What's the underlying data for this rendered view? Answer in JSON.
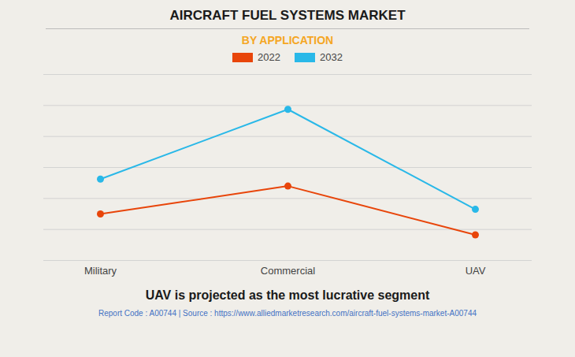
{
  "chart_data": {
    "type": "line",
    "title": "AIRCRAFT FUEL SYSTEMS MARKET",
    "subtitle": "BY APPLICATION",
    "categories": [
      "Military",
      "Commercial",
      "UAV"
    ],
    "series": [
      {
        "name": "2022",
        "color": "#E8450A",
        "values": [
          2,
          3.2,
          1.1
        ]
      },
      {
        "name": "2032",
        "color": "#29B8E8",
        "values": [
          3.5,
          6.5,
          2.2
        ]
      }
    ],
    "ylim": [
      0,
      8
    ],
    "yticks": [
      0,
      1.3333333333333333,
      2.6666666666666665,
      4,
      5.333333333333333,
      6.666666666666666,
      8
    ],
    "grid": true,
    "tick_labels": "x",
    "legend": "top",
    "marker": "circle",
    "annotations": [
      "UAV is projected as the most lucrative segment",
      "Report Code : A00744  |  Source : https://www.alliedmarketresearch.com/aircraft-fuel-systems-market-A00744"
    ]
  }
}
